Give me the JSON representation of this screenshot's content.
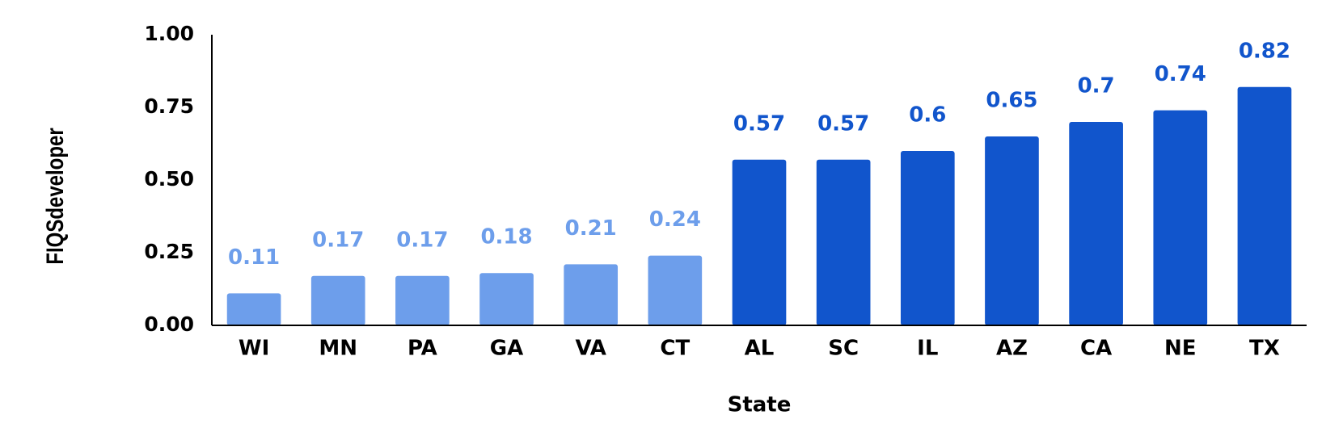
{
  "chart_data": {
    "type": "bar",
    "x_label": "State",
    "y_label": "FIQSdeveloper",
    "categories": [
      "WI",
      "MN",
      "PA",
      "GA",
      "VA",
      "CT",
      "AL",
      "SC",
      "IL",
      "AZ",
      "CA",
      "NE",
      "TX"
    ],
    "values": [
      0.11,
      0.17,
      0.17,
      0.18,
      0.21,
      0.24,
      0.57,
      0.57,
      0.6,
      0.65,
      0.7,
      0.74,
      0.82
    ],
    "colors": [
      "#6d9eeb",
      "#6d9eeb",
      "#6d9eeb",
      "#6d9eeb",
      "#6d9eeb",
      "#6d9eeb",
      "#1155cc",
      "#1155cc",
      "#1155cc",
      "#1155cc",
      "#1155cc",
      "#1155cc",
      "#1155cc"
    ],
    "ylim": [
      0,
      1
    ],
    "yticks": [
      {
        "value": 0,
        "label": "0.00"
      },
      {
        "value": 0.25,
        "label": "0.25"
      },
      {
        "value": 0.5,
        "label": "0.50"
      },
      {
        "value": 0.75,
        "label": "0.75"
      },
      {
        "value": 1,
        "label": "1.00"
      }
    ],
    "grid": false
  }
}
